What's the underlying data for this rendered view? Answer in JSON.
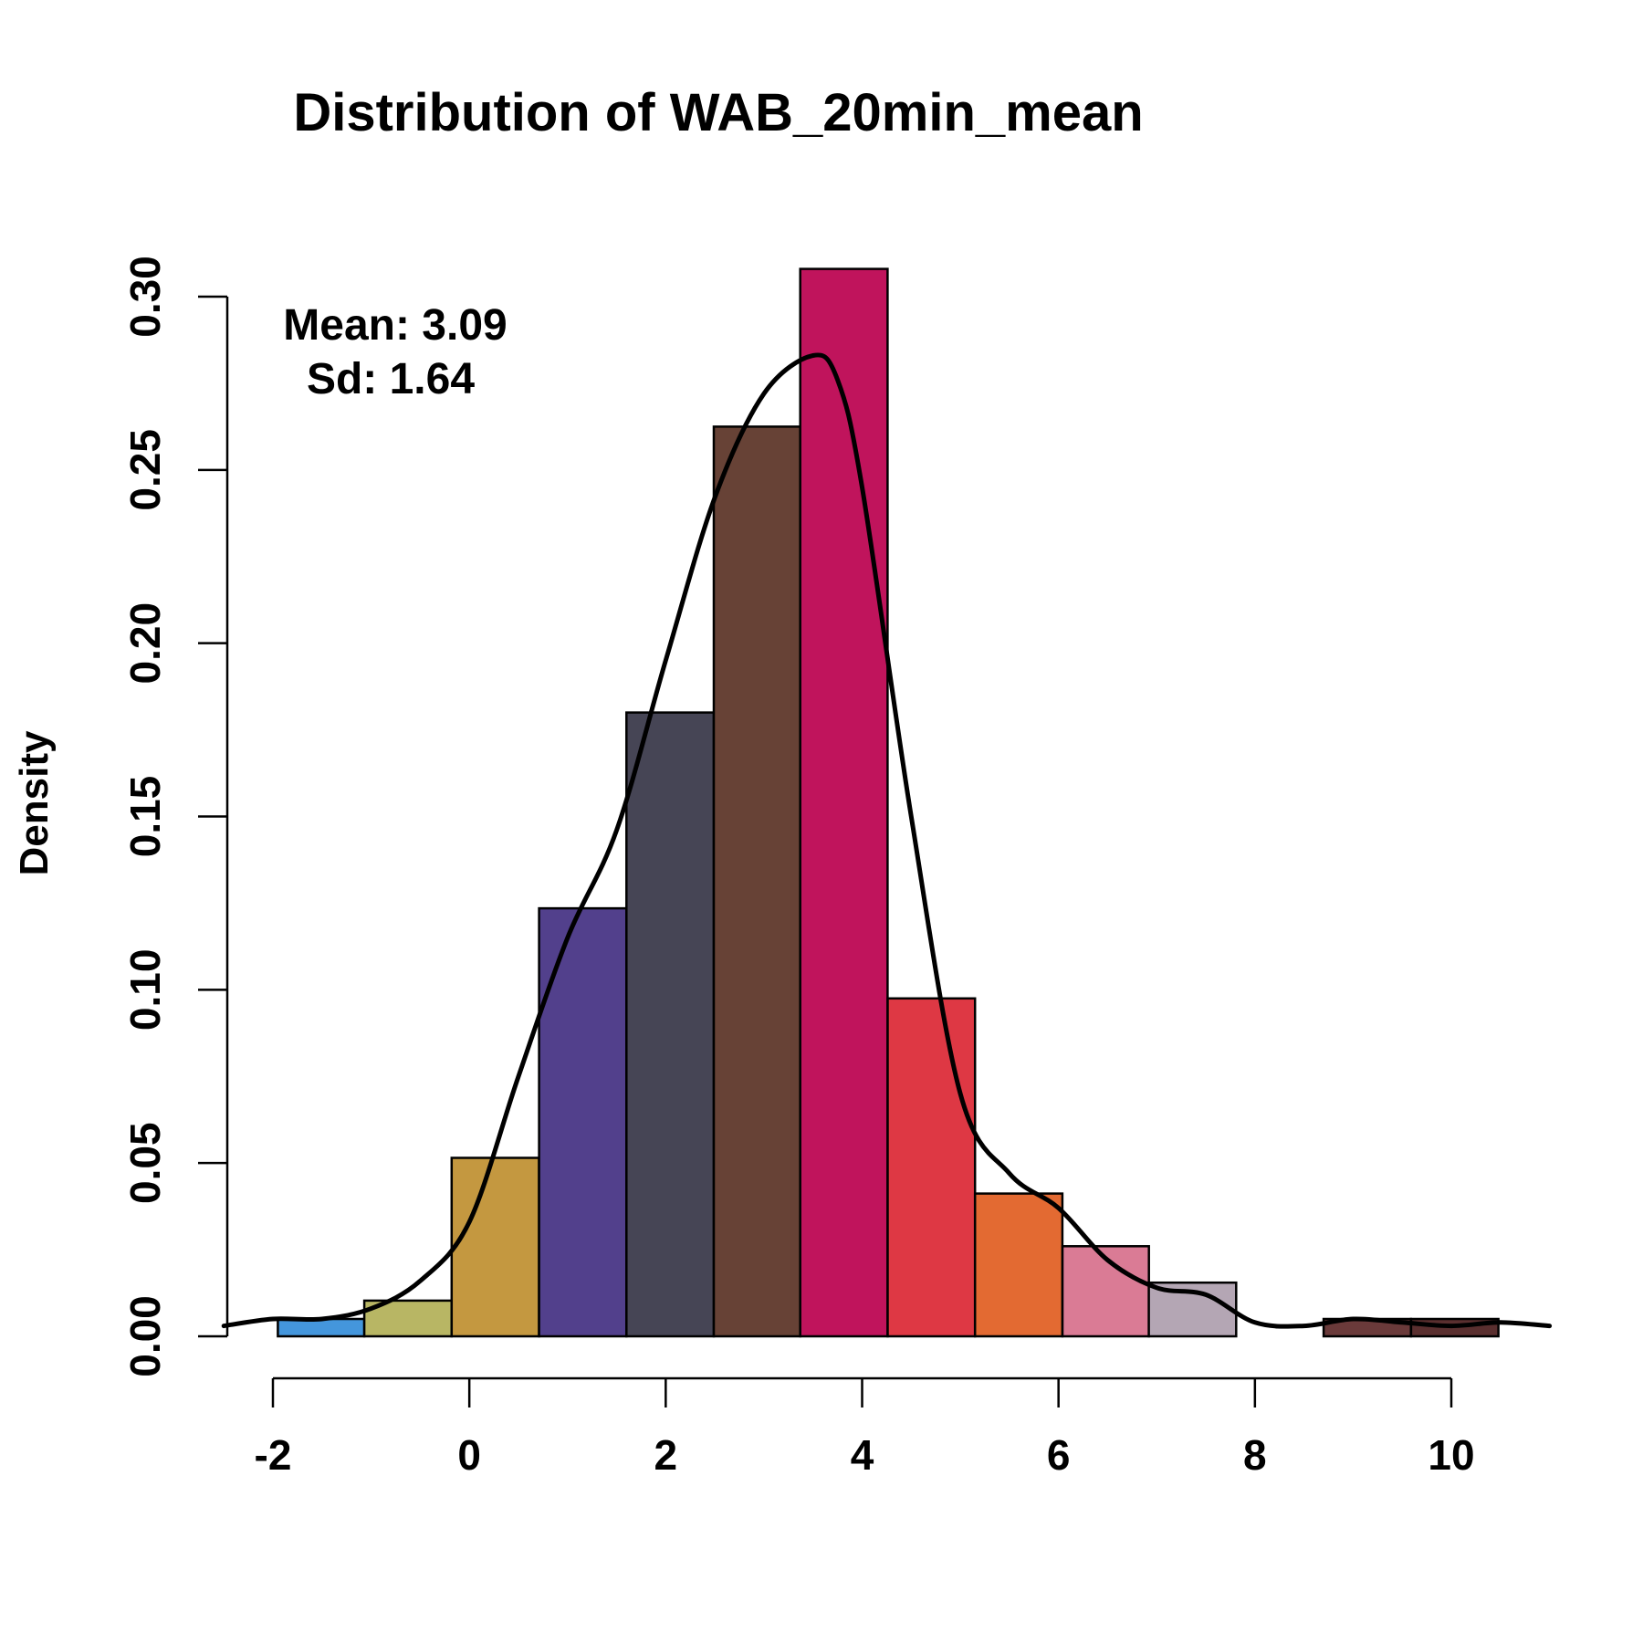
{
  "chart_data": {
    "type": "bar",
    "subtype": "histogram with density curve",
    "title": "Distribution of WAB_20min_mean",
    "xlabel": "",
    "ylabel": "Density",
    "xlim": [
      -2.5,
      11
    ],
    "ylim": [
      0,
      0.31
    ],
    "x_ticks": [
      -2,
      0,
      2,
      4,
      6,
      8,
      10
    ],
    "x_tick_labels": [
      "-2",
      "0",
      "2",
      "4",
      "6",
      "8",
      "10"
    ],
    "y_ticks": [
      0,
      0.05,
      0.1,
      0.15,
      0.2,
      0.25,
      0.3
    ],
    "y_tick_labels": [
      "0.00",
      "0.05",
      "0.10",
      "0.15",
      "0.20",
      "0.25",
      "0.30"
    ],
    "grid": false,
    "bin_edges": [
      -1.95,
      -1.07,
      -0.18,
      0.71,
      1.6,
      2.49,
      3.37,
      4.26,
      5.15,
      6.04,
      6.92,
      7.81,
      8.7,
      9.59,
      10.48
    ],
    "values": [
      0.005,
      0.0103,
      0.0515,
      0.1235,
      0.18,
      0.2625,
      0.308,
      0.0975,
      0.0412,
      0.026,
      0.0155,
      0.0,
      0.005,
      0.005
    ],
    "colors": [
      "#4496dc",
      "#b8b664",
      "#c49840",
      "#52408c",
      "#464555",
      "#674236",
      "#c0145c",
      "#de3844",
      "#e36a32",
      "#da7b95",
      "#b4a6b4",
      "#ffffff",
      "#6a3a3a",
      "#5a2f2f"
    ],
    "density_curve": {
      "x": [
        -2.5,
        -2.0,
        -1.5,
        -1.0,
        -0.5,
        0.0,
        0.5,
        1.0,
        1.5,
        2.0,
        2.5,
        3.0,
        3.5,
        3.75,
        4.0,
        4.5,
        5.0,
        5.5,
        6.0,
        6.5,
        7.0,
        7.5,
        8.0,
        8.5,
        9.0,
        9.5,
        10.0,
        10.5,
        11.0
      ],
      "y": [
        0.003,
        0.005,
        0.005,
        0.008,
        0.016,
        0.033,
        0.075,
        0.115,
        0.146,
        0.195,
        0.242,
        0.272,
        0.283,
        0.276,
        0.245,
        0.15,
        0.07,
        0.047,
        0.037,
        0.022,
        0.014,
        0.012,
        0.004,
        0.003,
        0.005,
        0.004,
        0.003,
        0.004,
        0.003
      ]
    },
    "annotations": {
      "mean": "Mean: 3.09",
      "sd": "Sd: 1.64"
    }
  },
  "colors": {
    "line": "#000000",
    "background": "#ffffff"
  }
}
